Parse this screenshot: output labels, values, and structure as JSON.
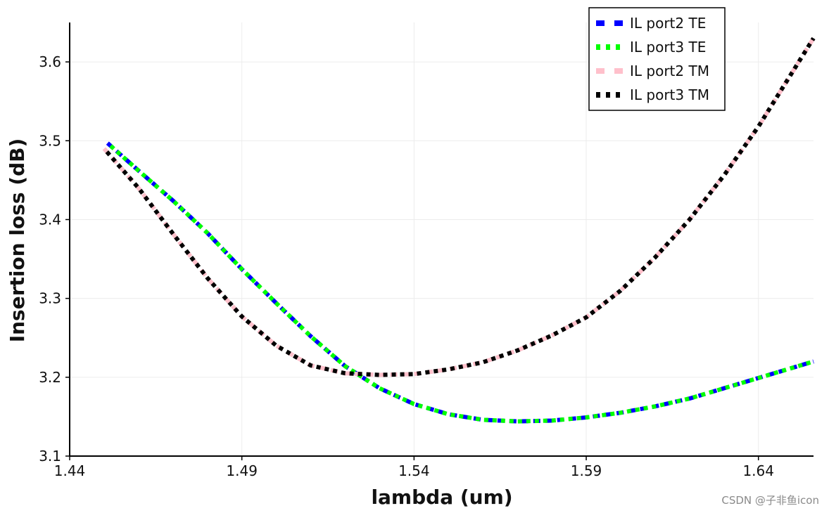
{
  "chart_data": {
    "type": "line",
    "xlabel": "lambda (um)",
    "ylabel": "Insertion loss (dB)",
    "xlim": [
      1.44,
      1.656
    ],
    "ylim": [
      3.1,
      3.65
    ],
    "xticks": [
      "1.44",
      "1.49",
      "1.54",
      "1.59",
      "1.64"
    ],
    "yticks": [
      "3.1",
      "3.2",
      "3.3",
      "3.4",
      "3.5",
      "3.6"
    ],
    "grid": true,
    "legend_position": "top-right",
    "series": [
      {
        "name": "IL port2 TE",
        "color": "#0000ff",
        "style": "dashed",
        "x": [
          1.451,
          1.46,
          1.47,
          1.48,
          1.49,
          1.5,
          1.51,
          1.52,
          1.53,
          1.54,
          1.55,
          1.56,
          1.57,
          1.58,
          1.59,
          1.6,
          1.61,
          1.62,
          1.63,
          1.64,
          1.656
        ],
        "y": [
          3.497,
          3.462,
          3.424,
          3.383,
          3.337,
          3.294,
          3.252,
          3.214,
          3.186,
          3.166,
          3.153,
          3.146,
          3.144,
          3.145,
          3.149,
          3.155,
          3.163,
          3.173,
          3.186,
          3.199,
          3.22
        ]
      },
      {
        "name": "IL port3 TE",
        "color": "#00ff00",
        "style": "dotted",
        "x": [
          1.451,
          1.46,
          1.47,
          1.48,
          1.49,
          1.5,
          1.51,
          1.52,
          1.53,
          1.54,
          1.55,
          1.56,
          1.57,
          1.58,
          1.59,
          1.6,
          1.61,
          1.62,
          1.63,
          1.64,
          1.656
        ],
        "y": [
          3.497,
          3.462,
          3.424,
          3.383,
          3.337,
          3.294,
          3.252,
          3.214,
          3.186,
          3.166,
          3.153,
          3.146,
          3.144,
          3.145,
          3.149,
          3.155,
          3.163,
          3.173,
          3.186,
          3.199,
          3.22
        ]
      },
      {
        "name": "IL port2 TM",
        "color": "#ffc0cb",
        "style": "dashed",
        "x": [
          1.45,
          1.46,
          1.47,
          1.48,
          1.49,
          1.5,
          1.51,
          1.52,
          1.53,
          1.54,
          1.55,
          1.56,
          1.57,
          1.58,
          1.59,
          1.6,
          1.61,
          1.62,
          1.63,
          1.64,
          1.656
        ],
        "y": [
          3.49,
          3.44,
          3.382,
          3.326,
          3.277,
          3.24,
          3.215,
          3.205,
          3.203,
          3.204,
          3.21,
          3.219,
          3.234,
          3.253,
          3.276,
          3.31,
          3.352,
          3.4,
          3.456,
          3.518,
          3.63
        ]
      },
      {
        "name": "IL port3 TM",
        "color": "#000000",
        "style": "dotted",
        "x": [
          1.45,
          1.46,
          1.47,
          1.48,
          1.49,
          1.5,
          1.51,
          1.52,
          1.53,
          1.54,
          1.55,
          1.56,
          1.57,
          1.58,
          1.59,
          1.6,
          1.61,
          1.62,
          1.63,
          1.64,
          1.656
        ],
        "y": [
          3.49,
          3.44,
          3.382,
          3.326,
          3.277,
          3.24,
          3.215,
          3.205,
          3.203,
          3.204,
          3.21,
          3.219,
          3.234,
          3.253,
          3.276,
          3.31,
          3.352,
          3.4,
          3.456,
          3.518,
          3.63
        ]
      }
    ]
  },
  "watermark": "CSDN @子非鱼icon"
}
